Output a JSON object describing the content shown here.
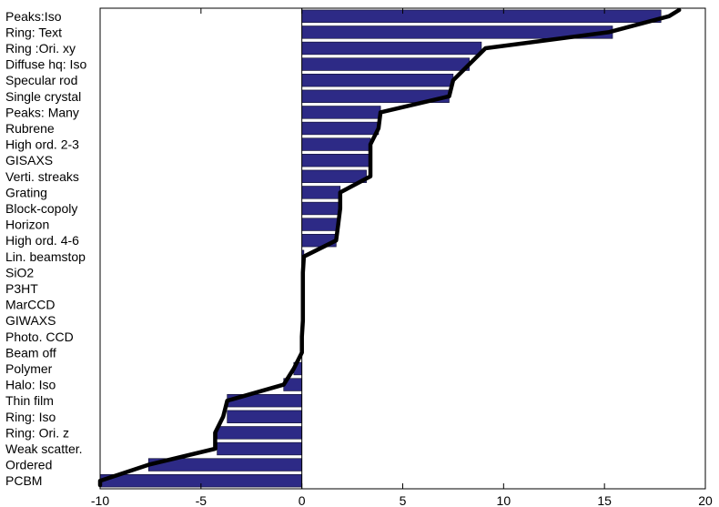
{
  "chart_data": {
    "type": "bar",
    "orientation": "horizontal",
    "categories": [
      "Peaks:Iso",
      "Ring: Text",
      "Ring :Ori. xy",
      "Diffuse hq: Iso",
      "Specular rod",
      "Single crystal",
      "Peaks: Many",
      "Rubrene",
      "High ord. 2-3",
      "GISAXS",
      "Verti. streaks",
      "Grating",
      "Block-copoly",
      "Horizon",
      "High ord. 4-6",
      "Lin. beamstop",
      "SiO2",
      "P3HT",
      "MarCCD",
      "GIWAXS",
      "Photo. CCD",
      "Beam off",
      "Polymer",
      "Halo: Iso",
      "Thin film",
      "Ring: Iso",
      "Ring: Ori. z",
      "Weak scatter.",
      "Ordered",
      "PCBM"
    ],
    "values": [
      17.8,
      15.4,
      8.9,
      8.3,
      7.5,
      7.3,
      3.9,
      3.8,
      3.4,
      3.4,
      3.2,
      1.9,
      1.9,
      1.8,
      1.7,
      0.1,
      0.05,
      0.05,
      0.05,
      0.05,
      0.0,
      0.0,
      -0.4,
      -0.9,
      -3.7,
      -3.7,
      -4.2,
      -4.2,
      -7.6,
      -10.0
    ],
    "trend_line": [
      18.2,
      15.2,
      9.1,
      8.3,
      7.5,
      7.3,
      3.9,
      3.8,
      3.4,
      3.4,
      3.4,
      1.9,
      1.9,
      1.8,
      1.7,
      0.1,
      0.05,
      0.05,
      0.05,
      0.05,
      0.0,
      0.0,
      -0.4,
      -0.9,
      -3.7,
      -3.9,
      -4.3,
      -4.3,
      -7.6,
      -10.0
    ],
    "xlim": [
      -10,
      20
    ],
    "xticks": [
      "-10",
      "-5",
      "0",
      "5",
      "10",
      "15",
      "20"
    ],
    "title": "",
    "xlabel": "",
    "ylabel": "",
    "grid": false,
    "colors": {
      "bar": "#2d2a86",
      "line": "#000000"
    }
  }
}
